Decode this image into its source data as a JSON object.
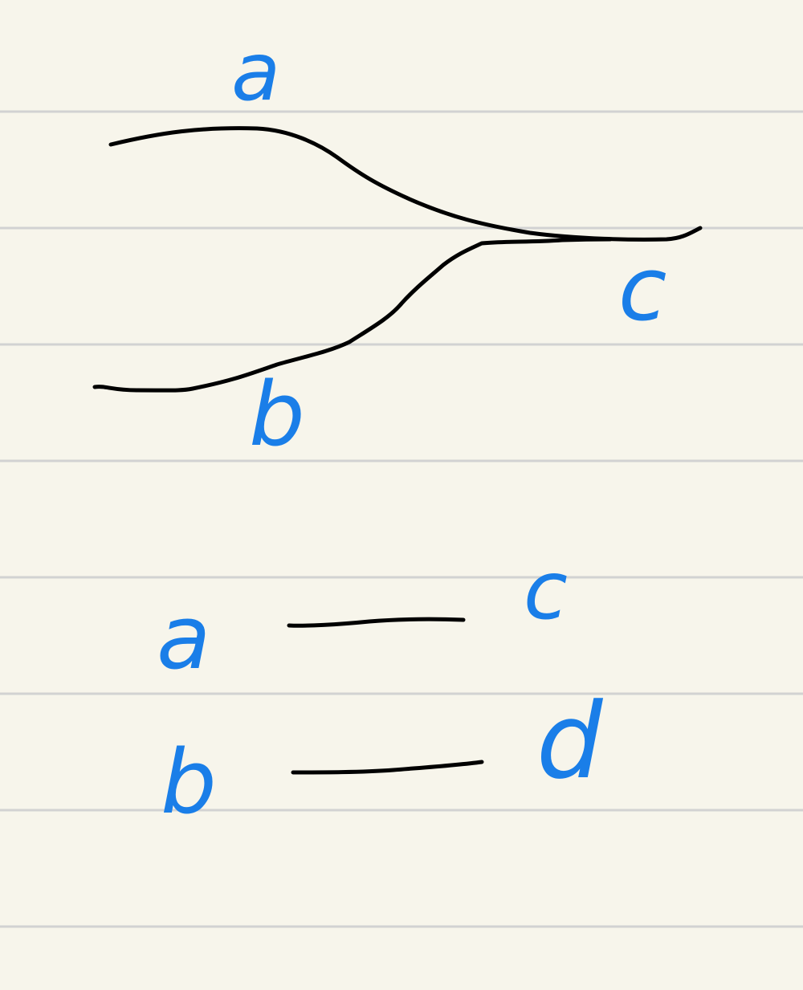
{
  "paper": {
    "background": "#f7f5eb",
    "rule_color": "#d2d2d2"
  },
  "ink": {
    "strokes": "#000000",
    "labels": "#1a7ee8"
  },
  "top_diagram": {
    "labels": {
      "a": "a",
      "b": "b",
      "c": "c"
    }
  },
  "bottom_diagram": {
    "labels": {
      "a": "a",
      "b": "b",
      "c": "c",
      "d": "d"
    }
  }
}
